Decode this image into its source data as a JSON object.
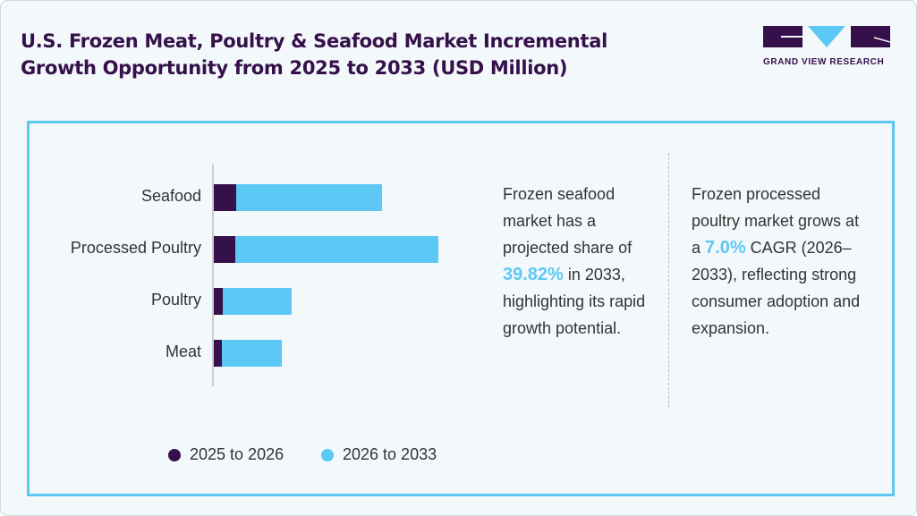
{
  "title_line1": "U.S. Frozen Meat, Poultry & Seafood Market Incremental",
  "title_line2": "Growth Opportunity from 2025 to 2033 (USD Million)",
  "logo": {
    "text": "GRAND VIEW RESEARCH"
  },
  "colors": {
    "dark": "#35104a",
    "light": "#5bc8f5",
    "border": "#5bc8f0"
  },
  "chart_data": {
    "type": "bar",
    "orientation": "horizontal",
    "stacked": true,
    "categories": [
      "Seafood",
      "Processed Poultry",
      "Poultry",
      "Meat"
    ],
    "series": [
      {
        "name": "2025 to 2026",
        "values": [
          25,
          24,
          10,
          9
        ],
        "color": "#35104a"
      },
      {
        "name": "2026 to 2033",
        "values": [
          163,
          227,
          77,
          67
        ],
        "color": "#5bc8f5"
      }
    ],
    "legend": "bottom",
    "grid": false
  },
  "insight1": {
    "pre": "Frozen seafood market has a projected share of ",
    "highlight": "39.82%",
    "post": " in 2033, highlighting its rapid growth potential."
  },
  "insight2": {
    "pre": "Frozen processed poultry market grows at a ",
    "highlight": "7.0%",
    "post": " CAGR (2026–2033), reflecting strong consumer adoption and expansion."
  }
}
